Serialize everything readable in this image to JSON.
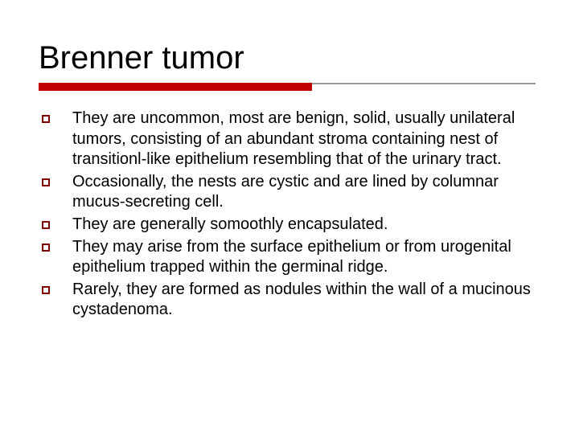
{
  "slide": {
    "title": "Brenner tumor",
    "title_fontsize": 40,
    "title_color": "#000000",
    "underline": {
      "gray_line_color": "#999999",
      "gray_line_width": 618,
      "gray_line_height": 2,
      "red_line_color": "#c00000",
      "red_line_width": 340,
      "red_line_height": 10
    },
    "bullets": [
      {
        "text": "They are uncommon, most are benign, solid, usually unilateral tumors, consisting of an abundant stroma containing nest of transitionl-like epithelium resembling that of the urinary tract."
      },
      {
        "text": "Occasionally, the nests are cystic and are lined by columnar mucus-secreting cell."
      },
      {
        "text": "They are generally somoothly encapsulated."
      },
      {
        "text": "They may arise from the surface epithelium or from urogenital epithelium trapped within the germinal ridge."
      },
      {
        "text": "Rarely, they are formed as nodules within the wall of a mucinous cystadenoma."
      }
    ],
    "bullet_marker_border_color": "#800000",
    "body_fontsize": 20,
    "body_color": "#000000",
    "background_color": "#ffffff"
  }
}
